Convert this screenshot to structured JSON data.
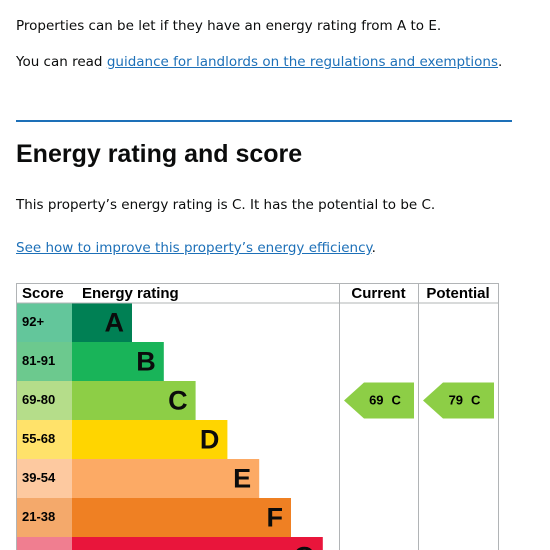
{
  "intro": {
    "text": "Properties can be let if they have an energy rating from A to E.",
    "read_prefix": "You can read",
    "read_link": "guidance for landlords on the regulations and exemptions",
    "read_suffix": "."
  },
  "heading": "Energy rating and score",
  "summary": "This property’s energy rating is C. It has the potential to be C.",
  "improve_link": "See how to improve this property’s energy efficiency",
  "improve_suffix": ".",
  "table": {
    "headers": [
      "Score",
      "Energy rating",
      "Current",
      "Potential"
    ],
    "rows": [
      {
        "score": "92+",
        "rating": "A",
        "color": "#008054",
        "score_color": "#63c69b"
      },
      {
        "score": "81-91",
        "rating": "B",
        "color": "#19b459",
        "score_color": "#6cc98e"
      },
      {
        "score": "69-80",
        "rating": "C",
        "color": "#8dce46",
        "score_color": "#b5dd8a"
      },
      {
        "score": "55-68",
        "rating": "D",
        "color": "#ffd500",
        "score_color": "#ffe26a"
      },
      {
        "score": "39-54",
        "rating": "E",
        "color": "#fcaa65",
        "score_color": "#fdc9a0"
      },
      {
        "score": "21-38",
        "rating": "F",
        "color": "#ef8023",
        "score_color": "#f4a96b"
      },
      {
        "rating": "G",
        "color": "#e9153b",
        "score_color": "#f07e90"
      }
    ],
    "current": {
      "score": 69,
      "rating": "C"
    },
    "potential": {
      "score": 79,
      "rating": "C"
    }
  }
}
